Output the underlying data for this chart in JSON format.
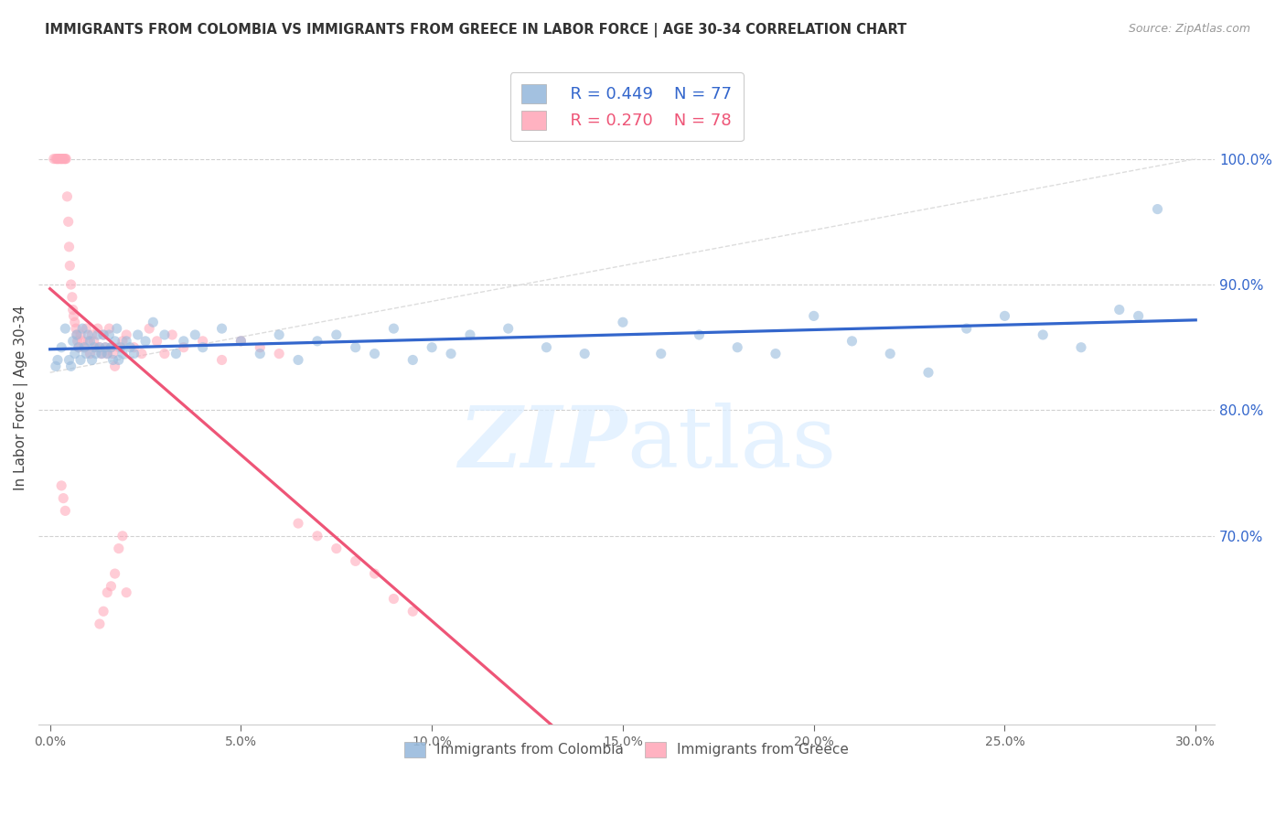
{
  "title": "IMMIGRANTS FROM COLOMBIA VS IMMIGRANTS FROM GREECE IN LABOR FORCE | AGE 30-34 CORRELATION CHART",
  "source": "Source: ZipAtlas.com",
  "ylabel": "In Labor Force | Age 30-34",
  "watermark_zip": "ZIP",
  "watermark_atlas": "atlas",
  "legend_blue_r": "R = 0.449",
  "legend_blue_n": "N = 77",
  "legend_pink_r": "R = 0.270",
  "legend_pink_n": "N = 78",
  "blue_scatter_color": "#99BBDD",
  "pink_scatter_color": "#FFAABB",
  "blue_line_color": "#3366CC",
  "pink_line_color": "#EE5577",
  "grid_color": "#CCCCCC",
  "diag_color": "#DDDDDD",
  "title_color": "#333333",
  "source_color": "#999999",
  "right_axis_color": "#3366CC",
  "xlim_min": -0.3,
  "xlim_max": 30.5,
  "ylim_min": 55.0,
  "ylim_max": 107.0,
  "ytick_positions": [
    70.0,
    80.0,
    90.0,
    100.0
  ],
  "ytick_labels": [
    "70.0%",
    "80.0%",
    "90.0%",
    "100.0%"
  ],
  "xtick_positions": [
    0.0,
    5.0,
    10.0,
    15.0,
    20.0,
    25.0,
    30.0
  ],
  "xtick_labels": [
    "0.0%",
    "5.0%",
    "10.0%",
    "15.0%",
    "20.0%",
    "25.0%",
    "30.0%"
  ],
  "colombia_x": [
    0.15,
    0.2,
    0.3,
    0.4,
    0.5,
    0.55,
    0.6,
    0.65,
    0.7,
    0.75,
    0.8,
    0.85,
    0.9,
    0.95,
    1.0,
    1.05,
    1.1,
    1.15,
    1.2,
    1.25,
    1.3,
    1.35,
    1.4,
    1.45,
    1.5,
    1.55,
    1.6,
    1.65,
    1.7,
    1.75,
    1.8,
    1.85,
    1.9,
    2.0,
    2.1,
    2.2,
    2.3,
    2.5,
    2.7,
    3.0,
    3.3,
    3.5,
    3.8,
    4.0,
    4.5,
    5.0,
    5.5,
    6.0,
    6.5,
    7.0,
    7.5,
    8.0,
    8.5,
    9.0,
    9.5,
    10.0,
    10.5,
    11.0,
    12.0,
    13.0,
    14.0,
    15.0,
    16.0,
    17.0,
    18.0,
    19.0,
    20.0,
    21.0,
    22.0,
    23.0,
    24.0,
    25.0,
    26.0,
    27.0,
    28.0,
    28.5,
    29.0
  ],
  "colombia_y": [
    83.5,
    84.0,
    85.0,
    86.5,
    84.0,
    83.5,
    85.5,
    84.5,
    86.0,
    85.0,
    84.0,
    86.5,
    85.0,
    84.5,
    86.0,
    85.5,
    84.0,
    85.0,
    84.5,
    86.0,
    85.0,
    84.5,
    86.0,
    85.0,
    84.5,
    86.0,
    85.0,
    84.0,
    85.5,
    86.5,
    84.0,
    85.0,
    84.5,
    85.5,
    85.0,
    84.5,
    86.0,
    85.5,
    87.0,
    86.0,
    84.5,
    85.5,
    86.0,
    85.0,
    86.5,
    85.5,
    84.5,
    86.0,
    84.0,
    85.5,
    86.0,
    85.0,
    84.5,
    86.5,
    84.0,
    85.0,
    84.5,
    86.0,
    86.5,
    85.0,
    84.5,
    87.0,
    84.5,
    86.0,
    85.0,
    84.5,
    87.5,
    85.5,
    84.5,
    83.0,
    86.5,
    87.5,
    86.0,
    85.0,
    88.0,
    87.5,
    96.0
  ],
  "greece_x": [
    0.1,
    0.15,
    0.18,
    0.2,
    0.22,
    0.25,
    0.28,
    0.3,
    0.32,
    0.35,
    0.38,
    0.4,
    0.42,
    0.45,
    0.48,
    0.5,
    0.52,
    0.55,
    0.58,
    0.6,
    0.62,
    0.65,
    0.68,
    0.7,
    0.72,
    0.75,
    0.8,
    0.85,
    0.9,
    0.95,
    1.0,
    1.05,
    1.1,
    1.15,
    1.2,
    1.25,
    1.3,
    1.35,
    1.4,
    1.45,
    1.5,
    1.55,
    1.6,
    1.65,
    1.7,
    1.8,
    1.9,
    2.0,
    2.2,
    2.4,
    2.6,
    2.8,
    3.0,
    3.2,
    3.5,
    4.0,
    4.5,
    5.0,
    5.5,
    6.0,
    6.5,
    7.0,
    7.5,
    8.0,
    8.5,
    9.0,
    9.5,
    1.3,
    1.4,
    1.5,
    1.6,
    1.7,
    1.8,
    1.9,
    2.0,
    0.3,
    0.35,
    0.4
  ],
  "greece_y": [
    100.0,
    100.0,
    100.0,
    100.0,
    100.0,
    100.0,
    100.0,
    100.0,
    100.0,
    100.0,
    100.0,
    100.0,
    100.0,
    97.0,
    95.0,
    93.0,
    91.5,
    90.0,
    89.0,
    88.0,
    87.5,
    87.0,
    86.5,
    86.0,
    85.5,
    85.0,
    86.0,
    85.5,
    85.0,
    86.5,
    85.5,
    84.5,
    86.0,
    85.5,
    85.0,
    86.5,
    85.0,
    84.5,
    86.0,
    85.0,
    84.5,
    86.5,
    85.0,
    84.5,
    83.5,
    85.0,
    85.5,
    86.0,
    85.0,
    84.5,
    86.5,
    85.5,
    84.5,
    86.0,
    85.0,
    85.5,
    84.0,
    85.5,
    85.0,
    84.5,
    71.0,
    70.0,
    69.0,
    68.0,
    67.0,
    65.0,
    64.0,
    63.0,
    64.0,
    65.5,
    66.0,
    67.0,
    69.0,
    70.0,
    65.5,
    74.0,
    73.0,
    72.0
  ]
}
